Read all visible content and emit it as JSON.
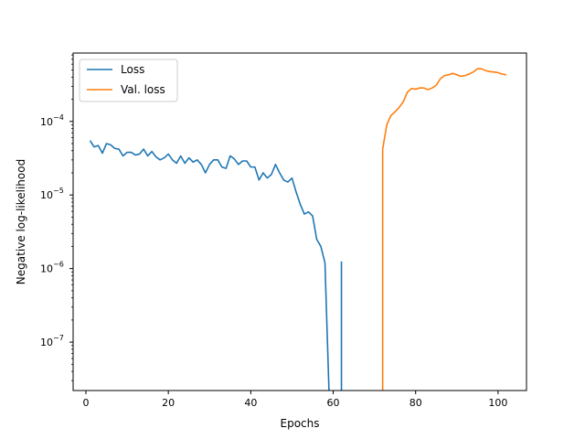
{
  "chart_data": {
    "type": "line",
    "xlabel": "Epochs",
    "ylabel": "Negative log-likelihood",
    "xlim": [
      -3.1,
      106.9
    ],
    "ylim": [
      2.2e-08,
      0.00085
    ],
    "yscale": "log",
    "grid": false,
    "legend_position": "upper-left",
    "x_ticks": [
      0,
      20,
      40,
      60,
      80,
      100
    ],
    "x_tick_labels": [
      "0",
      "20",
      "40",
      "60",
      "80",
      "100"
    ],
    "y_ticks": [
      1e-07,
      1e-06,
      1e-05,
      0.0001
    ],
    "y_tick_labels": [
      "10",
      "10",
      "10",
      "10"
    ],
    "y_tick_exponents": [
      "−7",
      "−6",
      "−5",
      "−4"
    ],
    "series": [
      {
        "name": "Loss",
        "color": "#1f77b4",
        "x": [
          1,
          2,
          3,
          4,
          5,
          6,
          7,
          8,
          9,
          10,
          11,
          12,
          13,
          14,
          15,
          16,
          17,
          18,
          19,
          20,
          21,
          22,
          23,
          24,
          25,
          26,
          27,
          28,
          29,
          30,
          31,
          32,
          33,
          34,
          35,
          36,
          37,
          38,
          39,
          40,
          41,
          42,
          43,
          44,
          45,
          46,
          47,
          48,
          49,
          50,
          51,
          52,
          53,
          54,
          55,
          56,
          57,
          58,
          59
        ],
        "y": [
          5.5e-05,
          4.5e-05,
          4.7e-05,
          3.7e-05,
          5e-05,
          4.8e-05,
          4.3e-05,
          4.2e-05,
          3.4e-05,
          3.8e-05,
          3.8e-05,
          3.5e-05,
          3.6e-05,
          4.2e-05,
          3.4e-05,
          3.9e-05,
          3.3e-05,
          3e-05,
          3.2e-05,
          3.6e-05,
          3e-05,
          2.7e-05,
          3.4e-05,
          2.7e-05,
          3.2e-05,
          2.8e-05,
          3e-05,
          2.6e-05,
          2e-05,
          2.6e-05,
          3e-05,
          3e-05,
          2.4e-05,
          2.3e-05,
          3.4e-05,
          3.1e-05,
          2.6e-05,
          2.9e-05,
          2.9e-05,
          2.4e-05,
          2.4e-05,
          1.6e-05,
          2e-05,
          1.7e-05,
          1.9e-05,
          2.6e-05,
          2e-05,
          1.6e-05,
          1.5e-05,
          1.7e-05,
          1.1e-05,
          7.5e-06,
          5.5e-06,
          5.9e-06,
          5.2e-06,
          2.5e-06,
          2e-06,
          1.2e-06,
          2e-08
        ]
      },
      {
        "name": "",
        "color": "#1f77b4",
        "x": [
          62,
          62
        ],
        "y": [
          1.25e-06,
          2e-08
        ]
      },
      {
        "name": "Val. loss",
        "color": "#ff7f0e",
        "x": [
          72,
          72,
          73,
          74,
          75,
          76,
          77,
          78,
          79,
          80,
          81,
          82,
          83,
          84,
          85,
          86,
          87,
          88,
          89,
          90,
          91,
          92,
          93,
          94,
          95,
          96,
          97,
          98,
          99,
          100,
          101,
          102
        ],
        "y": [
          2e-08,
          4.2e-05,
          9e-05,
          0.00012,
          0.000135,
          0.000155,
          0.000185,
          0.00025,
          0.00028,
          0.000275,
          0.000285,
          0.000285,
          0.00027,
          0.000285,
          0.00031,
          0.00038,
          0.00042,
          0.00043,
          0.00045,
          0.00043,
          0.00041,
          0.00042,
          0.00044,
          0.00047,
          0.00052,
          0.00052,
          0.00049,
          0.000475,
          0.00047,
          0.00046,
          0.00044,
          0.00043
        ]
      }
    ]
  }
}
